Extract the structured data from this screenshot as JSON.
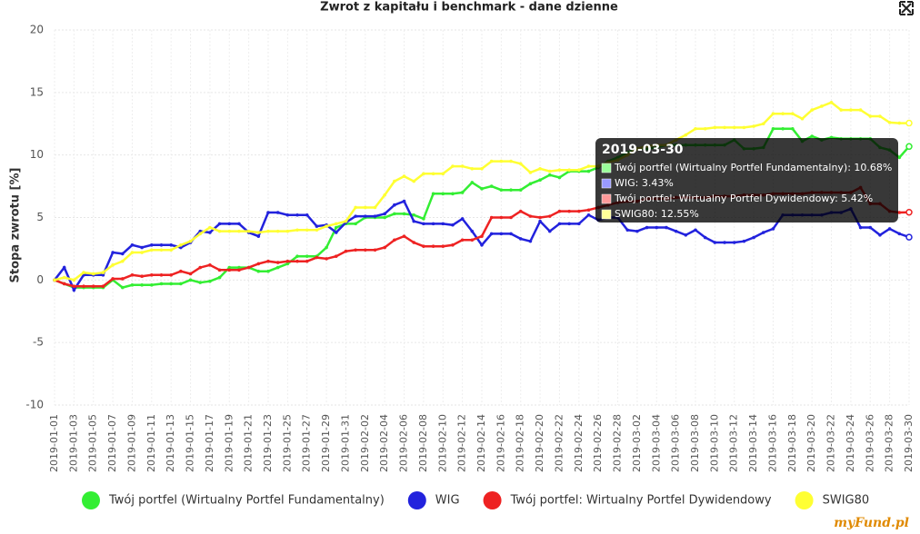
{
  "chart_data": {
    "type": "line",
    "title": "Zwrot z kapitału i benchmark - dane dzienne",
    "ylabel": "Stopa zwrotu [%]",
    "watermark": "myFund.pl",
    "categories": [
      "2019-01-01",
      null,
      "2019-01-03",
      null,
      "2019-01-05",
      null,
      "2019-01-07",
      null,
      "2019-01-09",
      null,
      "2019-01-11",
      null,
      "2019-01-13",
      null,
      "2019-01-15",
      null,
      "2019-01-17",
      null,
      "2019-01-19",
      null,
      "2019-01-21",
      null,
      "2019-01-23",
      null,
      "2019-01-25",
      null,
      "2019-01-27",
      null,
      "2019-01-29",
      null,
      "2019-01-31",
      null,
      "2019-02-02",
      null,
      "2019-02-04",
      null,
      "2019-02-06",
      null,
      "2019-02-08",
      null,
      "2019-02-10",
      null,
      "2019-02-12",
      null,
      "2019-02-14",
      null,
      "2019-02-16",
      null,
      "2019-02-18",
      null,
      "2019-02-20",
      null,
      "2019-02-22",
      null,
      "2019-02-24",
      null,
      "2019-02-26",
      null,
      "2019-02-28",
      null,
      "2019-03-02",
      null,
      "2019-03-04",
      null,
      "2019-03-06",
      null,
      "2019-03-08",
      null,
      "2019-03-10",
      null,
      "2019-03-12",
      null,
      "2019-03-14",
      null,
      "2019-03-16",
      null,
      "2019-03-18",
      null,
      "2019-03-20",
      null,
      "2019-03-22",
      null,
      "2019-03-24",
      null,
      "2019-03-26",
      null,
      "2019-03-28",
      null,
      "2019-03-30"
    ],
    "series": [
      {
        "name": "Twój portfel (Wirtualny Portfel Fundamentalny)",
        "color": "#33ee33",
        "values": [
          0,
          -0.3,
          -0.6,
          -0.6,
          -0.6,
          -0.6,
          0.0,
          -0.6,
          -0.4,
          -0.4,
          -0.4,
          -0.3,
          -0.3,
          -0.3,
          0.0,
          -0.2,
          -0.1,
          0.2,
          1.0,
          1.0,
          1.0,
          0.7,
          0.7,
          1.0,
          1.3,
          1.9,
          1.9,
          1.9,
          2.6,
          4.2,
          4.5,
          4.5,
          5.0,
          5.0,
          5.0,
          5.3,
          5.3,
          5.2,
          4.9,
          6.9,
          6.9,
          6.9,
          7.0,
          7.8,
          7.3,
          7.5,
          7.2,
          7.2,
          7.2,
          7.7,
          8.0,
          8.4,
          8.2,
          8.7,
          8.7,
          8.7,
          9.0,
          9.5,
          9.8,
          10.2,
          10.5,
          10.5,
          10.6,
          10.8,
          10.8,
          10.8,
          10.8,
          10.8,
          10.8,
          10.8,
          11.2,
          10.5,
          10.5,
          10.6,
          12.1,
          12.1,
          12.1,
          11.1,
          11.5,
          11.2,
          11.4,
          11.3,
          11.3,
          11.3,
          11.3,
          10.6,
          10.4,
          9.8,
          10.68
        ]
      },
      {
        "name": "WIG",
        "color": "#2222dd",
        "values": [
          0,
          1.0,
          -0.8,
          0.4,
          0.4,
          0.4,
          2.2,
          2.1,
          2.8,
          2.6,
          2.8,
          2.8,
          2.8,
          2.6,
          3.0,
          3.9,
          3.8,
          4.5,
          4.5,
          4.5,
          3.8,
          3.5,
          5.4,
          5.4,
          5.2,
          5.2,
          5.2,
          4.3,
          4.4,
          3.8,
          4.6,
          5.1,
          5.1,
          5.1,
          5.3,
          6.0,
          6.3,
          4.7,
          4.5,
          4.5,
          4.5,
          4.4,
          4.9,
          3.9,
          2.8,
          3.7,
          3.7,
          3.7,
          3.3,
          3.1,
          4.7,
          3.9,
          4.5,
          4.5,
          4.5,
          5.2,
          4.8,
          5.0,
          5.0,
          4.0,
          3.9,
          4.2,
          4.2,
          4.2,
          3.9,
          3.6,
          4.0,
          3.4,
          3.0,
          3.0,
          3.0,
          3.1,
          3.4,
          3.8,
          4.1,
          5.2,
          5.2,
          5.2,
          5.2,
          5.2,
          5.4,
          5.4,
          5.7,
          4.2,
          4.2,
          3.6,
          4.1,
          3.7,
          3.43
        ]
      },
      {
        "name": "Twój portfel: Wirtualny Portfel Dywidendowy",
        "color": "#ee2222",
        "values": [
          0,
          -0.3,
          -0.5,
          -0.5,
          -0.5,
          -0.5,
          0.1,
          0.1,
          0.4,
          0.3,
          0.4,
          0.4,
          0.4,
          0.7,
          0.5,
          1.0,
          1.2,
          0.8,
          0.8,
          0.8,
          1.0,
          1.3,
          1.5,
          1.4,
          1.5,
          1.5,
          1.5,
          1.8,
          1.7,
          1.9,
          2.3,
          2.4,
          2.4,
          2.4,
          2.6,
          3.2,
          3.5,
          3.0,
          2.7,
          2.7,
          2.7,
          2.8,
          3.2,
          3.2,
          3.5,
          5.0,
          5.0,
          5.0,
          5.5,
          5.1,
          5.0,
          5.1,
          5.5,
          5.5,
          5.5,
          5.6,
          5.8,
          6.0,
          6.2,
          6.3,
          6.3,
          6.5,
          6.5,
          6.5,
          6.6,
          6.6,
          6.6,
          6.6,
          6.7,
          6.7,
          6.7,
          6.8,
          6.8,
          6.8,
          6.9,
          6.9,
          6.9,
          6.9,
          7.0,
          7.0,
          7.0,
          7.0,
          7.0,
          7.4,
          6.1,
          6.1,
          5.5,
          5.4,
          5.42
        ]
      },
      {
        "name": "SWIG80",
        "color": "#ffff33",
        "values": [
          0,
          0.2,
          0.0,
          0.6,
          0.5,
          0.6,
          1.2,
          1.5,
          2.2,
          2.2,
          2.4,
          2.4,
          2.4,
          2.8,
          3.1,
          3.7,
          4.2,
          3.9,
          3.9,
          3.9,
          3.9,
          3.8,
          3.9,
          3.9,
          3.9,
          4.0,
          4.0,
          4.0,
          4.3,
          4.5,
          4.7,
          5.8,
          5.8,
          5.8,
          6.8,
          7.9,
          8.3,
          7.9,
          8.5,
          8.5,
          8.5,
          9.1,
          9.1,
          8.9,
          8.9,
          9.5,
          9.5,
          9.5,
          9.3,
          8.6,
          8.9,
          8.7,
          8.8,
          8.8,
          8.8,
          9.1,
          9.1,
          9.4,
          9.6,
          10.0,
          10.5,
          10.7,
          10.8,
          10.8,
          11.2,
          11.6,
          12.1,
          12.1,
          12.2,
          12.2,
          12.2,
          12.2,
          12.3,
          12.5,
          13.3,
          13.3,
          13.3,
          12.9,
          13.6,
          13.9,
          14.2,
          13.6,
          13.6,
          13.6,
          13.1,
          13.1,
          12.6,
          12.55,
          12.55
        ]
      }
    ],
    "ylim": [
      -10,
      20
    ],
    "yticks": [
      -10,
      -5,
      0,
      5,
      10,
      15,
      20
    ],
    "grid": true,
    "tooltip": {
      "value_labels": [
        "10.68%",
        "3.43%",
        "5.42%",
        "12.55%"
      ]
    }
  }
}
